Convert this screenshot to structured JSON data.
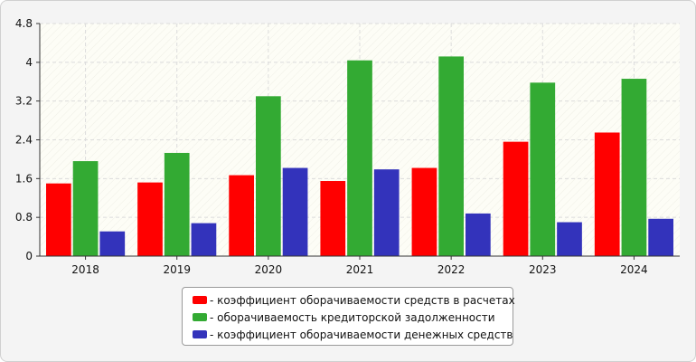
{
  "chart_data": {
    "type": "bar",
    "categories": [
      "2018",
      "2019",
      "2020",
      "2021",
      "2022",
      "2023",
      "2024"
    ],
    "series": [
      {
        "name": "- коэффициент оборачиваемости средств в расчетах",
        "color": "#ff0000",
        "values": [
          1.5,
          1.52,
          1.67,
          1.55,
          1.82,
          2.36,
          2.55
        ]
      },
      {
        "name": "- оборачиваемость кредиторской задолженности",
        "color": "#33aa33",
        "values": [
          1.96,
          2.13,
          3.3,
          4.04,
          4.12,
          3.58,
          3.66
        ]
      },
      {
        "name": "- коэффициент оборачиваемости денежных средств",
        "color": "#3333bb",
        "values": [
          0.51,
          0.68,
          1.82,
          1.79,
          0.88,
          0.7,
          0.77
        ]
      }
    ],
    "yticks": [
      "0",
      "0.8",
      "1.6",
      "2.4",
      "3.2",
      "4",
      "4.8"
    ],
    "ylim": [
      0,
      4.8
    ],
    "title": "",
    "xlabel": "",
    "ylabel": "",
    "grid": true,
    "legend_position": "bottom-center"
  }
}
